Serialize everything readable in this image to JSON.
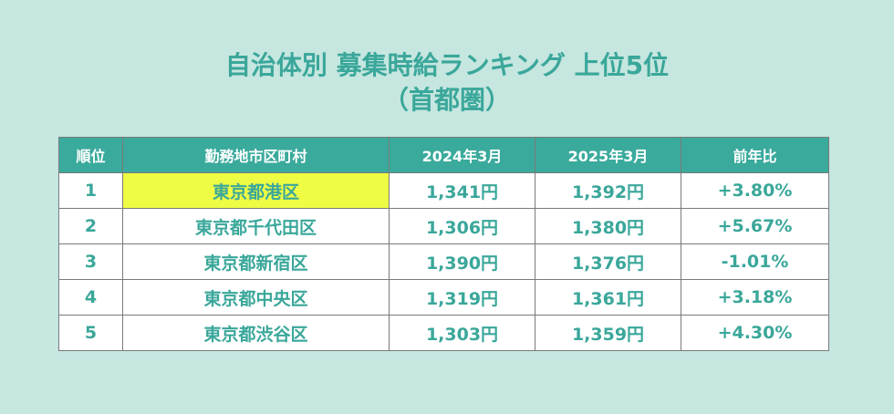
{
  "title": {
    "line1": "自治体別 募集時給ランキング 上位5位",
    "line2": "（首都圏）"
  },
  "table": {
    "headers": [
      "順位",
      "勤務地市区町村",
      "2024年3月",
      "2025年3月",
      "前年比"
    ],
    "rows": [
      {
        "rank": "1",
        "area": "東京都港区",
        "y2024": "1,341円",
        "y2025": "1,392円",
        "change": "+3.80%"
      },
      {
        "rank": "2",
        "area": "東京都千代田区",
        "y2024": "1,306円",
        "y2025": "1,380円",
        "change": "+5.67%"
      },
      {
        "rank": "3",
        "area": "東京都新宿区",
        "y2024": "1,390円",
        "y2025": "1,376円",
        "change": "-1.01%"
      },
      {
        "rank": "4",
        "area": "東京都中央区",
        "y2024": "1,319円",
        "y2025": "1,361円",
        "change": "+3.18%"
      },
      {
        "rank": "5",
        "area": "東京都渋谷区",
        "y2024": "1,303円",
        "y2025": "1,359円",
        "change": "+4.30%"
      }
    ]
  },
  "colors": {
    "background": "#c6e6e0",
    "accent": "#3aa79a",
    "header_bg": "#3aaa9c",
    "highlight": "#eefc43"
  }
}
